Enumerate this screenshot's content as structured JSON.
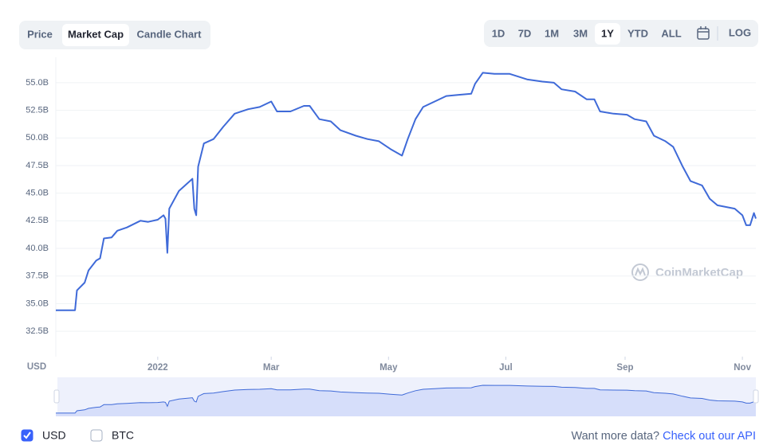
{
  "toolbar": {
    "tabs": [
      "Price",
      "Market Cap",
      "Candle Chart"
    ],
    "active_tab": 1,
    "ranges": [
      "1D",
      "7D",
      "1M",
      "3M",
      "1Y",
      "YTD",
      "ALL"
    ],
    "active_range": 4,
    "scale_toggle": "LOG"
  },
  "chart_data": {
    "type": "line",
    "y_axis_label": "USD",
    "color": "#3f6ad8",
    "grid": true,
    "x": [
      0,
      10,
      11,
      15,
      17,
      21,
      23,
      25,
      29,
      32,
      37,
      44,
      48,
      53,
      56,
      57,
      58,
      59,
      64,
      71,
      72,
      73,
      74,
      77,
      82,
      87,
      93,
      100,
      106,
      112,
      115,
      122,
      129,
      132,
      137,
      143,
      148,
      156,
      162,
      168,
      174,
      180,
      183,
      187,
      191,
      197,
      203,
      209,
      216,
      218,
      222,
      228,
      236,
      245,
      253,
      259,
      263,
      270,
      276,
      280,
      283,
      290,
      297,
      301,
      307,
      311,
      317,
      321,
      326,
      330,
      336,
      340,
      344,
      353,
      357,
      359,
      361,
      363,
      364
    ],
    "values": [
      34.4,
      34.4,
      36.2,
      36.9,
      38.0,
      38.9,
      39.1,
      40.9,
      41.0,
      41.6,
      41.9,
      42.5,
      42.4,
      42.6,
      43.0,
      42.7,
      39.6,
      43.6,
      45.2,
      46.3,
      43.6,
      43.0,
      47.4,
      49.5,
      49.9,
      51.0,
      52.2,
      52.6,
      52.8,
      53.3,
      52.4,
      52.4,
      52.9,
      52.9,
      51.7,
      51.5,
      50.7,
      50.2,
      49.9,
      49.7,
      49.0,
      48.4,
      49.9,
      51.7,
      52.8,
      53.3,
      53.8,
      53.9,
      54.0,
      54.9,
      55.9,
      55.8,
      55.8,
      55.3,
      55.1,
      55.0,
      54.4,
      54.2,
      53.5,
      53.5,
      52.4,
      52.2,
      52.1,
      51.7,
      51.5,
      50.2,
      49.7,
      49.2,
      47.4,
      46.1,
      45.7,
      44.5,
      43.9,
      43.6,
      43.0,
      42.1,
      42.1,
      43.2,
      42.7
    ],
    "xlim": [
      0,
      364
    ],
    "xticks": [
      {
        "value": 53,
        "label": "2022"
      },
      {
        "value": 112,
        "label": "Mar"
      },
      {
        "value": 173,
        "label": "May"
      },
      {
        "value": 234,
        "label": "Jul"
      },
      {
        "value": 296,
        "label": "Sep"
      },
      {
        "value": 357,
        "label": "Nov"
      }
    ],
    "ylim": [
      30.2,
      57.3
    ],
    "yticks": [
      {
        "value": 32.5,
        "label": "32.5B"
      },
      {
        "value": 35,
        "label": "35.0B"
      },
      {
        "value": 37.5,
        "label": "37.5B"
      },
      {
        "value": 40,
        "label": "40.0B"
      },
      {
        "value": 42.5,
        "label": "42.5B"
      },
      {
        "value": 45,
        "label": "45.0B"
      },
      {
        "value": 47.5,
        "label": "47.5B"
      },
      {
        "value": 50,
        "label": "50.0B"
      },
      {
        "value": 52.5,
        "label": "52.5B"
      },
      {
        "value": 55,
        "label": "55.0B"
      }
    ]
  },
  "watermark": "CoinMarketCap",
  "currency_toggles": [
    {
      "label": "USD",
      "checked": true
    },
    {
      "label": "BTC",
      "checked": false
    }
  ],
  "footer": {
    "prompt": "Want more data?",
    "link": "Check out our API"
  }
}
